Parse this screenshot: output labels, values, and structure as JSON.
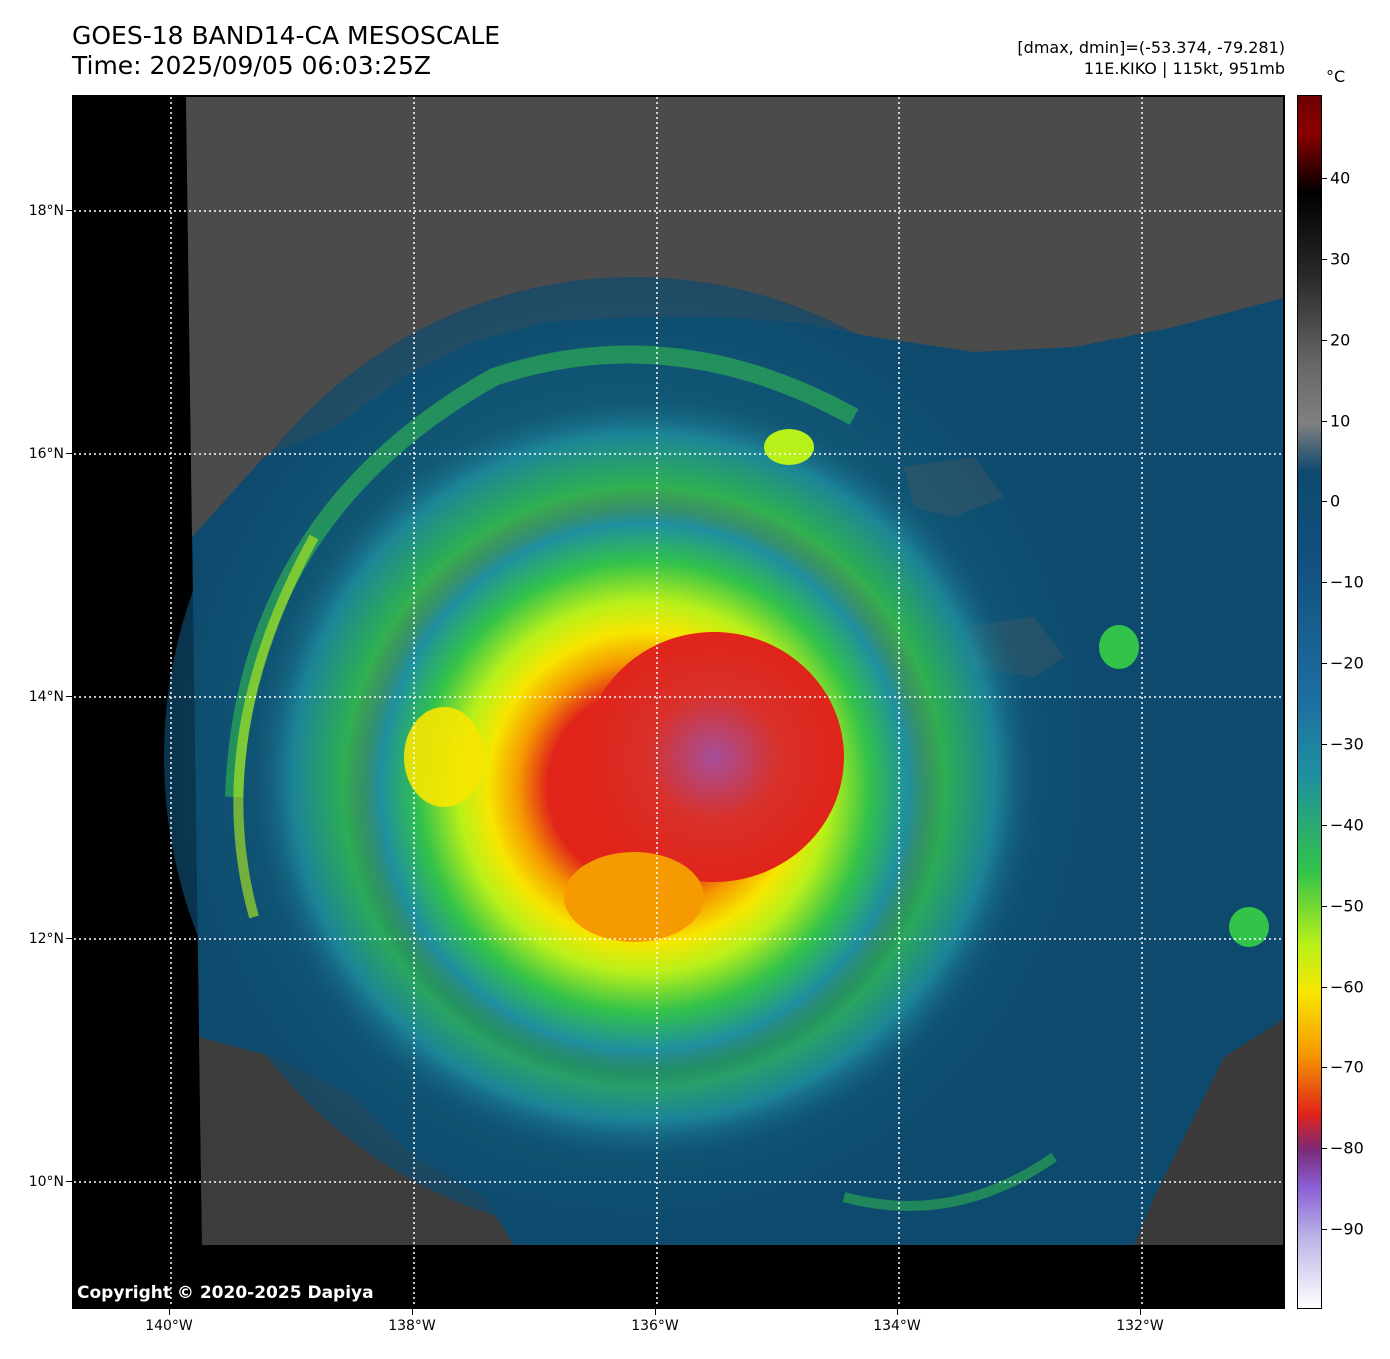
{
  "header": {
    "title_line1": "GOES-18 BAND14-CA MESOSCALE",
    "title_line2": "Time: 2025/09/05 06:03:25Z",
    "info_line1": "[dmax, dmin]=(-53.374, -79.281)",
    "info_line2": "11E.KIKO | 115kt, 951mb"
  },
  "map": {
    "lat_labels": [
      "18°N",
      "16°N",
      "14°N",
      "12°N",
      "10°N"
    ],
    "lon_labels": [
      "140°W",
      "138°W",
      "136°W",
      "134°W",
      "132°W"
    ],
    "copyright": "Copyright © 2020-2025 Dapiya"
  },
  "colorbar": {
    "unit": "°C",
    "labels": [
      "40",
      "30",
      "20",
      "10",
      "0",
      "−10",
      "−20",
      "−30",
      "−40",
      "−50",
      "−60",
      "−70",
      "−80",
      "−90"
    ],
    "colors": {
      "warm_black": "#000000",
      "gray": "#808080",
      "ocean_blue": "#0d4a6e",
      "teal": "#1f8fa0",
      "green": "#33c24a",
      "yellow_green": "#b8f01a",
      "yellow": "#f7e600",
      "orange": "#f59a00",
      "red": "#e0241a",
      "dark_red": "#6b0000",
      "purple": "#8a5fd6",
      "white": "#ffffff"
    }
  }
}
